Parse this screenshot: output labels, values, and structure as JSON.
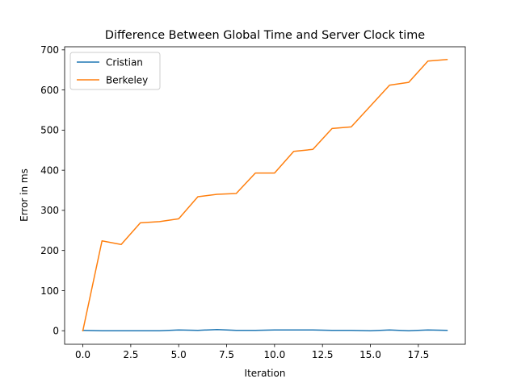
{
  "chart_data": {
    "type": "line",
    "title": "Difference Between Global Time and Server Clock time",
    "xlabel": "Iteration",
    "ylabel": "Error in ms",
    "xlim": [
      -0.95,
      19.95
    ],
    "ylim": [
      -33.7,
      707.7
    ],
    "xticks": [
      0.0,
      2.5,
      5.0,
      7.5,
      10.0,
      12.5,
      15.0,
      17.5
    ],
    "xtick_labels": [
      "0.0",
      "2.5",
      "5.0",
      "7.5",
      "10.0",
      "12.5",
      "15.0",
      "17.5"
    ],
    "yticks": [
      0,
      100,
      200,
      300,
      400,
      500,
      600,
      700
    ],
    "ytick_labels": [
      "0",
      "100",
      "200",
      "300",
      "400",
      "500",
      "600",
      "700"
    ],
    "grid": false,
    "legend_position": "upper-left",
    "x": [
      0,
      1,
      2,
      3,
      4,
      5,
      6,
      7,
      8,
      9,
      10,
      11,
      12,
      13,
      14,
      15,
      16,
      17,
      18,
      19
    ],
    "series": [
      {
        "name": "Cristian",
        "color": "#1f77b4",
        "values": [
          1,
          0,
          0,
          0,
          0,
          2,
          1,
          3,
          1,
          1,
          2,
          2,
          2,
          1,
          1,
          0,
          2,
          0,
          2,
          1
        ]
      },
      {
        "name": "Berkeley",
        "color": "#ff7f0e",
        "values": [
          0,
          224,
          215,
          269,
          272,
          279,
          334,
          340,
          342,
          393,
          393,
          447,
          452,
          504,
          508,
          560,
          612,
          619,
          672,
          676
        ]
      }
    ]
  }
}
